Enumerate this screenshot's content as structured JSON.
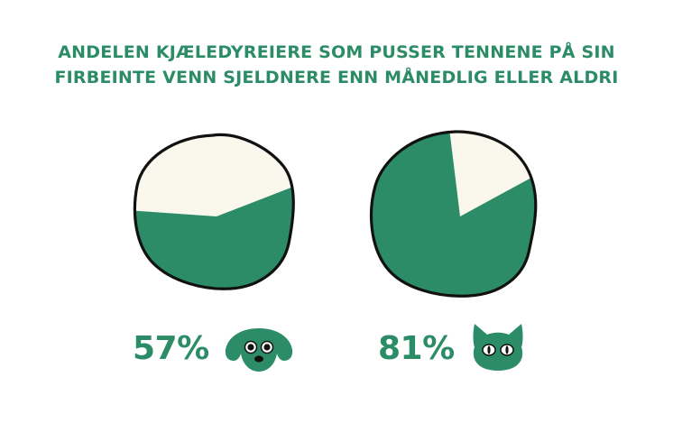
{
  "title": {
    "line1": "ANDELEN KJÆLEDYREIERE SOM PUSSER TENNENE PÅ SIN",
    "line2": "FIRBEINTE VENN SJELDNERE ENN MÅNEDLIG ELLER ALDRI"
  },
  "colors": {
    "green": "#2b8c67",
    "cream": "#faf7ec",
    "outline": "#111111"
  },
  "chart_data": [
    {
      "type": "pie",
      "title": "",
      "category_icon": "dog-icon",
      "value_label": "57%",
      "slices": [
        {
          "value": 57,
          "color": "#2b8c67"
        },
        {
          "value": 43,
          "color": "#faf7ec"
        }
      ]
    },
    {
      "type": "pie",
      "title": "",
      "category_icon": "cat-icon",
      "value_label": "81%",
      "slices": [
        {
          "value": 81,
          "color": "#2b8c67"
        },
        {
          "value": 19,
          "color": "#faf7ec"
        }
      ]
    }
  ]
}
